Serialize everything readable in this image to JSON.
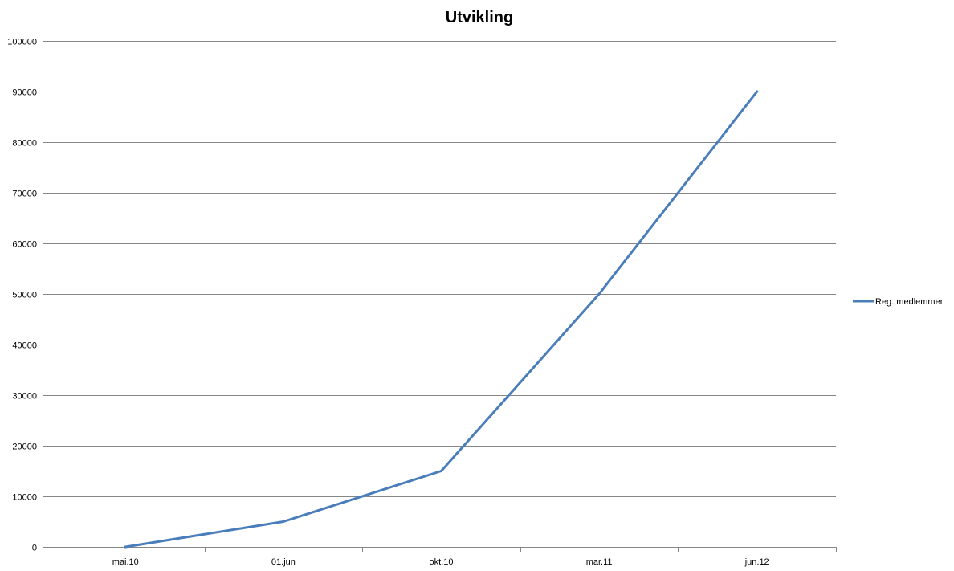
{
  "chart_data": {
    "type": "line",
    "title": "Utvikling",
    "xlabel": "",
    "ylabel": "",
    "categories": [
      "mai.10",
      "01.jun",
      "okt.10",
      "mar.11",
      "jun.12"
    ],
    "series": [
      {
        "name": "Reg. medlemmer",
        "values": [
          0,
          5000,
          15000,
          50000,
          90000
        ],
        "color": "#4A7EBB"
      }
    ],
    "ylim": [
      0,
      100000
    ],
    "yticks": [
      "0",
      "10000",
      "20000",
      "30000",
      "40000",
      "50000",
      "60000",
      "70000",
      "80000",
      "90000",
      "100000"
    ],
    "grid": true,
    "legend_position": "right"
  }
}
